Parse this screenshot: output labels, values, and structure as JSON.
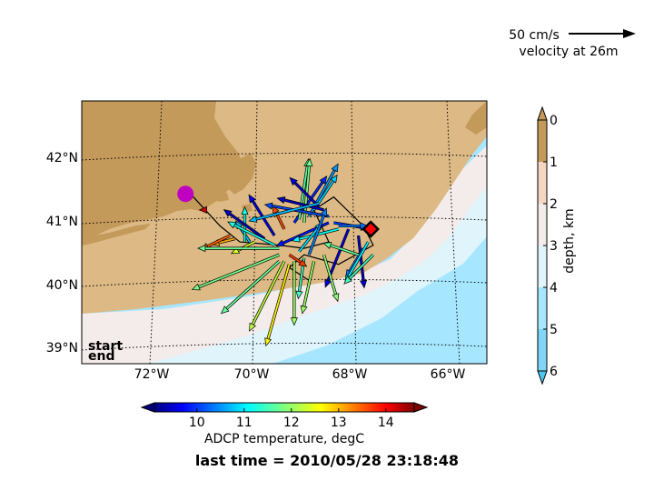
{
  "scale": {
    "value_text": "50 cm/s",
    "label": "velocity at 26m",
    "value": 50
  },
  "map": {
    "xticks": [
      {
        "value": -72,
        "label": "72°W"
      },
      {
        "value": -70,
        "label": "70°W"
      },
      {
        "value": -68,
        "label": "68°W"
      },
      {
        "value": -66,
        "label": "66°W"
      }
    ],
    "yticks": [
      {
        "value": 42,
        "label": "42°N"
      },
      {
        "value": 41,
        "label": "41°N"
      },
      {
        "value": 40,
        "label": "40°N"
      },
      {
        "value": 39,
        "label": "39°N"
      }
    ],
    "lon_range": [
      -73.4,
      -65.2
    ],
    "lat_range": [
      38.8,
      42.9
    ],
    "start_label": "start",
    "end_label": "end",
    "start_color": "#c000c0",
    "end_color": "#ff0000",
    "land_color": "#c49a5a",
    "shelf_color": "#ddb985"
  },
  "depth_colorbar": {
    "label": "depth, km",
    "ticks": [
      "0",
      "1",
      "2",
      "3",
      "4",
      "5",
      "6"
    ]
  },
  "temp_colorbar": {
    "label": "ADCP temperature, degC",
    "ticks": [
      "10",
      "11",
      "12",
      "13",
      "14"
    ],
    "range": [
      9.1,
      14.6
    ]
  },
  "footer": {
    "last_time": "last time = 2010/05/28 23:18:48"
  },
  "chart_data": {
    "type": "scatter",
    "title": "",
    "xlabel": "",
    "ylabel": "",
    "xlim": [
      -73.4,
      -65.2
    ],
    "ylim": [
      38.8,
      42.9
    ],
    "track": [
      {
        "lon": -71.2,
        "lat": 41.45
      },
      {
        "lon": -70.6,
        "lat": 40.95
      },
      {
        "lon": -70.2,
        "lat": 40.7
      },
      {
        "lon": -69.4,
        "lat": 40.65
      },
      {
        "lon": -68.9,
        "lat": 40.6
      },
      {
        "lon": -68.4,
        "lat": 40.7
      },
      {
        "lon": -68.7,
        "lat": 41.2
      },
      {
        "lon": -68.3,
        "lat": 41.4
      },
      {
        "lon": -67.7,
        "lat": 40.95
      },
      {
        "lon": -67.5,
        "lat": 40.65
      },
      {
        "lon": -68.2,
        "lat": 40.35
      },
      {
        "lon": -68.9,
        "lat": 40.5
      },
      {
        "lon": -69.2,
        "lat": 40.3
      },
      {
        "lon": -68.8,
        "lat": 40.1
      }
    ],
    "start": {
      "lon": -71.3,
      "lat": 41.45
    },
    "end": {
      "lon": -67.55,
      "lat": 40.9
    },
    "vectors": [
      {
        "lon": -70.0,
        "lat": 40.7,
        "u": -12,
        "v": 18,
        "t": 10.8
      },
      {
        "lon": -70.1,
        "lat": 40.7,
        "u": 0,
        "v": 30,
        "t": 11.3
      },
      {
        "lon": -70.3,
        "lat": 40.75,
        "u": -20,
        "v": -5,
        "t": 13.0
      },
      {
        "lon": -70.4,
        "lat": 40.8,
        "u": -25,
        "v": -12,
        "t": 13.4
      },
      {
        "lon": -69.9,
        "lat": 40.7,
        "u": -20,
        "v": -10,
        "t": 12.3
      },
      {
        "lon": -69.7,
        "lat": 40.75,
        "u": -35,
        "v": 25,
        "t": 9.5
      },
      {
        "lon": -69.5,
        "lat": 40.8,
        "u": -22,
        "v": 35,
        "t": 9.7
      },
      {
        "lon": -69.3,
        "lat": 40.9,
        "u": -10,
        "v": 20,
        "t": 13.5
      },
      {
        "lon": -69.1,
        "lat": 41.0,
        "u": 28,
        "v": 40,
        "t": 10.0
      },
      {
        "lon": -69.0,
        "lat": 41.05,
        "u": 8,
        "v": 52,
        "t": 11.6
      },
      {
        "lon": -68.9,
        "lat": 41.0,
        "u": 5,
        "v": 55,
        "t": 11.8
      },
      {
        "lon": -68.8,
        "lat": 41.1,
        "u": 25,
        "v": 45,
        "t": 10.6
      },
      {
        "lon": -68.7,
        "lat": 41.2,
        "u": 20,
        "v": 30,
        "t": 10.9
      },
      {
        "lon": -68.6,
        "lat": 41.25,
        "u": -25,
        "v": 25,
        "t": 9.6
      },
      {
        "lon": -68.5,
        "lat": 41.2,
        "u": -40,
        "v": 10,
        "t": 9.5
      },
      {
        "lon": -68.4,
        "lat": 41.1,
        "u": -55,
        "v": 10,
        "t": 10.2
      },
      {
        "lon": -68.3,
        "lat": 41.0,
        "u": 30,
        "v": -5,
        "t": 10.1
      },
      {
        "lon": -68.2,
        "lat": 40.95,
        "u": 25,
        "v": 0,
        "t": 10.4
      },
      {
        "lon": -68.6,
        "lat": 41.3,
        "u": -60,
        "v": -15,
        "t": 10.8
      },
      {
        "lon": -68.4,
        "lat": 41.0,
        "u": -45,
        "v": -20,
        "t": 9.9
      },
      {
        "lon": -68.2,
        "lat": 40.9,
        "u": -40,
        "v": -10,
        "t": 11.2
      },
      {
        "lon": -68.0,
        "lat": 40.9,
        "u": -20,
        "v": -50,
        "t": 9.6
      },
      {
        "lon": -67.8,
        "lat": 40.8,
        "u": 5,
        "v": -45,
        "t": 9.5
      },
      {
        "lon": -67.7,
        "lat": 40.6,
        "u": -15,
        "v": -25,
        "t": 10.4
      },
      {
        "lon": -67.6,
        "lat": 40.7,
        "u": -20,
        "v": -35,
        "t": 11.1
      },
      {
        "lon": -67.5,
        "lat": 40.5,
        "u": -25,
        "v": -25,
        "t": 11.5
      },
      {
        "lon": -67.8,
        "lat": 40.5,
        "u": -30,
        "v": 10,
        "t": 11.7
      },
      {
        "lon": -68.5,
        "lat": 40.5,
        "u": 12,
        "v": -40,
        "t": 11.9
      },
      {
        "lon": -68.7,
        "lat": 40.4,
        "u": -10,
        "v": -45,
        "t": 12.0
      },
      {
        "lon": -68.9,
        "lat": 40.45,
        "u": -5,
        "v": -35,
        "t": 11.5
      },
      {
        "lon": -69.1,
        "lat": 40.4,
        "u": 0,
        "v": -55,
        "t": 12.0
      },
      {
        "lon": -69.2,
        "lat": 40.35,
        "u": -20,
        "v": -70,
        "t": 12.6
      },
      {
        "lon": -69.3,
        "lat": 40.4,
        "u": -30,
        "v": -60,
        "t": 12.2
      },
      {
        "lon": -69.4,
        "lat": 40.4,
        "u": -50,
        "v": -45,
        "t": 11.7
      },
      {
        "lon": -69.4,
        "lat": 40.5,
        "u": -75,
        "v": -30,
        "t": 11.8
      },
      {
        "lon": -69.4,
        "lat": 40.6,
        "u": -70,
        "v": 0,
        "t": 11.7
      },
      {
        "lon": -69.5,
        "lat": 40.65,
        "u": -40,
        "v": 20,
        "t": 11.3
      },
      {
        "lon": -69.2,
        "lat": 40.5,
        "u": 15,
        "v": -10,
        "t": 13.6
      },
      {
        "lon": -69.0,
        "lat": 40.55,
        "u": 20,
        "v": 25,
        "t": 11.0
      },
      {
        "lon": -68.8,
        "lat": 40.5,
        "u": 15,
        "v": 40,
        "t": 10.5
      },
      {
        "lon": -70.9,
        "lat": 41.2,
        "u": -5,
        "v": 0,
        "t": 14.2
      }
    ]
  }
}
